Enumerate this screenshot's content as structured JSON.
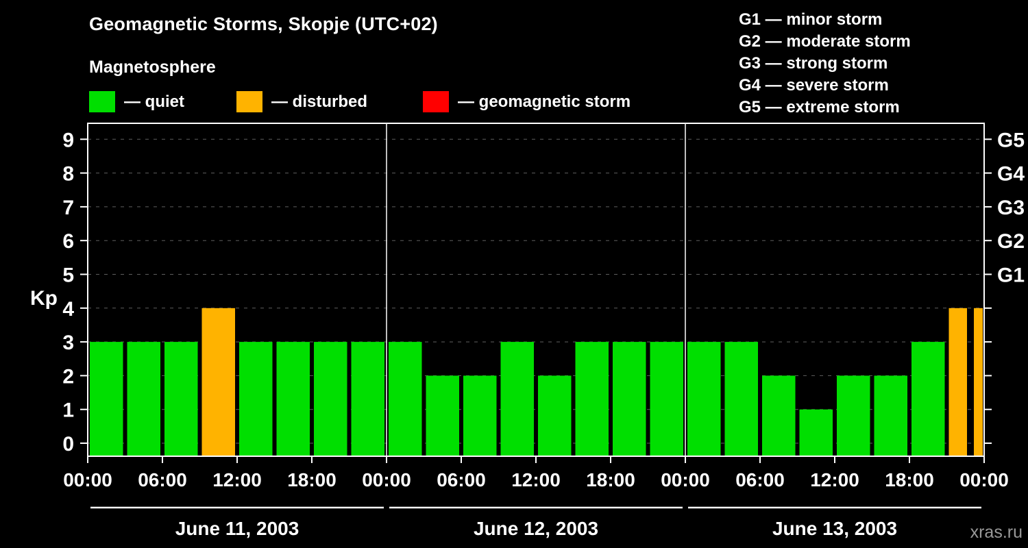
{
  "header": {
    "title": "Geomagnetic Storms, Skopje (UTC+02)",
    "subtitle": "Magnetosphere"
  },
  "legend": {
    "items": [
      {
        "name": "quiet",
        "label": "— quiet",
        "color": "#00df00"
      },
      {
        "name": "disturbed",
        "label": "— disturbed",
        "color": "#ffb300"
      },
      {
        "name": "storm",
        "label": "— geomagnetic storm",
        "color": "#ff0000"
      }
    ]
  },
  "g_legend": {
    "items": [
      "G1 — minor storm",
      "G2 — moderate storm",
      "G3 — strong storm",
      "G4 — severe storm",
      "G5 — extreme storm"
    ]
  },
  "watermark": "xras.ru",
  "chart_data": {
    "type": "bar",
    "title": "Geomagnetic Storms, Skopje (UTC+02)",
    "ylabel": "Kp",
    "ylim": [
      0,
      9
    ],
    "yticks": [
      0,
      1,
      2,
      3,
      4,
      5,
      6,
      7,
      8,
      9
    ],
    "grid": "dashed-horizontal",
    "x_tick_labels": [
      "00:00",
      "06:00",
      "12:00",
      "18:00"
    ],
    "final_tick_label": "00:00",
    "interval_hours": 3,
    "right_axis_labels": [
      {
        "value": 9,
        "label": "G5"
      },
      {
        "value": 8,
        "label": "G4"
      },
      {
        "value": 7,
        "label": "G3"
      },
      {
        "value": 6,
        "label": "G2"
      },
      {
        "value": 5,
        "label": "G1"
      }
    ],
    "days": [
      {
        "date": "June 11, 2003",
        "kp_values": [
          3,
          3,
          3,
          4,
          3,
          3,
          3,
          3
        ]
      },
      {
        "date": "June 12, 2003",
        "kp_values": [
          3,
          2,
          2,
          3,
          2,
          3,
          3,
          3
        ]
      },
      {
        "date": "June 13, 2003",
        "kp_values": [
          3,
          3,
          2,
          1,
          2,
          2,
          3,
          4
        ]
      }
    ],
    "partial_bar": {
      "value": 4
    },
    "thresholds": {
      "quiet_max": 3,
      "disturbed_max": 4
    },
    "colors": {
      "quiet": "#00df00",
      "disturbed": "#ffb300",
      "storm": "#ff0000",
      "grid": "#5f5f5f",
      "axis": "#ffffff"
    }
  }
}
